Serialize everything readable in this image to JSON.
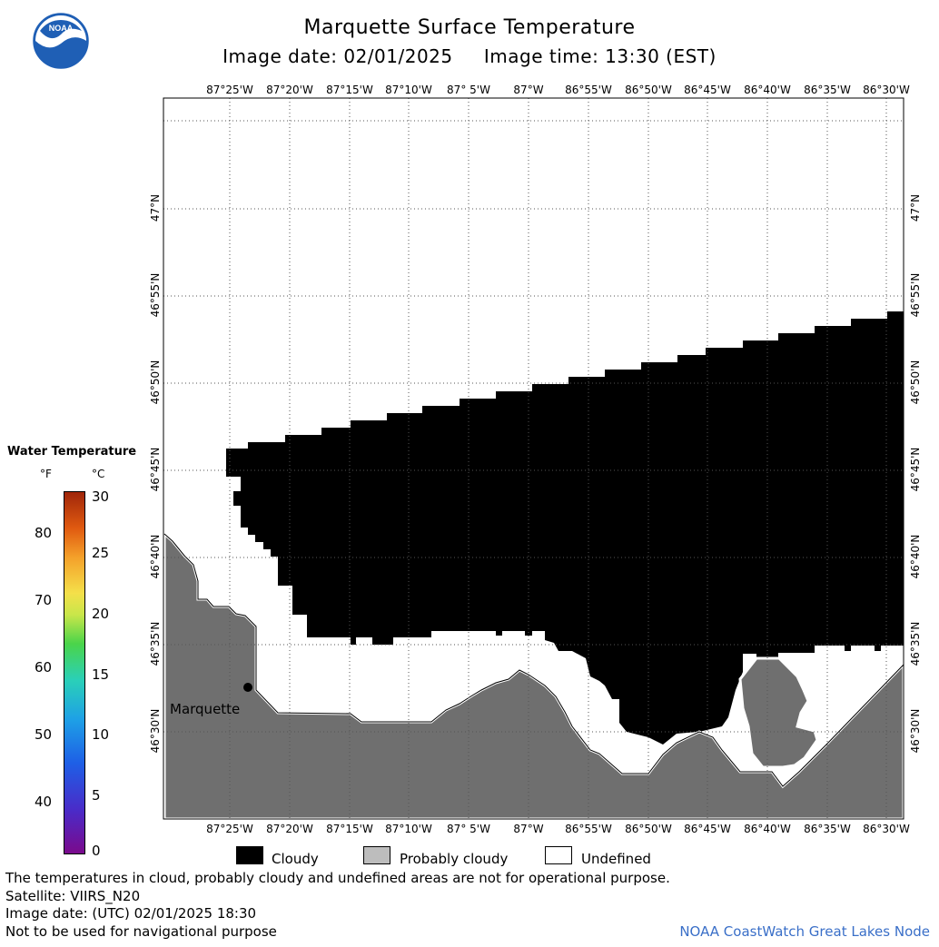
{
  "header": {
    "title": "Marquette Surface Temperature",
    "subtitle": "Image date: 02/01/2025     Image time: 13:30 (EST)"
  },
  "logo": {
    "text": "NOAA",
    "icon": "noaa-logo-icon"
  },
  "axes": {
    "lon_ticks": [
      "87°25'W",
      "87°20'W",
      "87°15'W",
      "87°10'W",
      "87° 5'W",
      "87°W",
      "86°55'W",
      "86°50'W",
      "86°45'W",
      "86°40'W",
      "86°35'W",
      "86°30'W"
    ],
    "lat_ticks": [
      "47°N",
      "46°55'N",
      "46°50'N",
      "46°45'N",
      "46°40'N",
      "46°35'N",
      "46°30'N"
    ]
  },
  "map": {
    "city": {
      "name": "Marquette"
    },
    "colors": {
      "land": "#6f6f6f",
      "cloud": "#000000",
      "undefined": "#ffffff",
      "grid": "#555555"
    }
  },
  "colorbar": {
    "title": "Water Temperature",
    "unit_f": "°F",
    "unit_c": "°C",
    "f_ticks": [
      "80",
      "70",
      "60",
      "50",
      "40"
    ],
    "c_ticks": [
      "30",
      "25",
      "20",
      "15",
      "10",
      "5",
      "0"
    ]
  },
  "legend": {
    "items": [
      {
        "label": "Cloudy",
        "color": "#000000"
      },
      {
        "label": "Probably cloudy",
        "color": "#bdbdbd"
      },
      {
        "label": "Undefined",
        "color": "#ffffff"
      }
    ]
  },
  "footer": {
    "note": "The temperatures in cloud, probably cloudy and undefined areas are not for operational purpose.",
    "satellite": "Satellite: VIIRS_N20",
    "utc": "Image date: (UTC) 02/01/2025  18:30",
    "nav": "Not to be used for navigational purpose",
    "credit": "NOAA CoastWatch Great Lakes Node"
  }
}
